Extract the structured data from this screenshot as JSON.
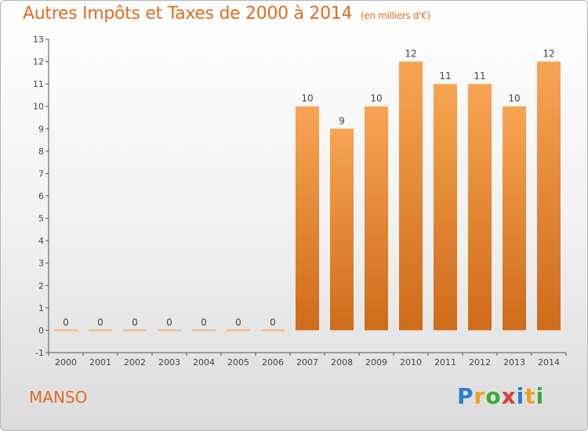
{
  "header": {
    "title": "Autres Impôts et Taxes de 2000 à 2014",
    "subtitle": "(en milliers d'€)"
  },
  "footer": {
    "commune": "MANSO",
    "logo_letters": [
      "P",
      "r",
      "o",
      "x",
      "i",
      "t",
      "i"
    ],
    "logo_colors": [
      "#2a7fd4",
      "#f0a020",
      "#39a935",
      "#e03a3a",
      "#2a7fd4",
      "#f0a020",
      "#39a935"
    ]
  },
  "chart_data": {
    "type": "bar",
    "title": "Autres Impôts et Taxes de 2000 à 2014",
    "subtitle": "(en milliers d'€)",
    "categories": [
      "2000",
      "2001",
      "2002",
      "2003",
      "2004",
      "2005",
      "2006",
      "2007",
      "2008",
      "2009",
      "2010",
      "2011",
      "2012",
      "2013",
      "2014"
    ],
    "values": [
      0,
      0,
      0,
      0,
      0,
      0,
      0,
      10,
      9,
      10,
      12,
      11,
      11,
      10,
      12
    ],
    "data_labels": [
      "0",
      "0",
      "0",
      "0",
      "0",
      "0",
      "0",
      "10",
      "9",
      "10",
      "12",
      "11",
      "11",
      "10",
      "12"
    ],
    "yticks": [
      "-1",
      "0",
      "1",
      "2",
      "3",
      "4",
      "5",
      "6",
      "7",
      "8",
      "9",
      "10",
      "11",
      "12",
      "13"
    ],
    "ylim": [
      -1,
      13
    ],
    "xlabel": "",
    "ylabel": "",
    "grid": false,
    "colors": {
      "bar_top": "#f7a553",
      "bar_bottom": "#cf6b19",
      "zero_bar": "#f4b47c",
      "axis": "#555555"
    }
  }
}
